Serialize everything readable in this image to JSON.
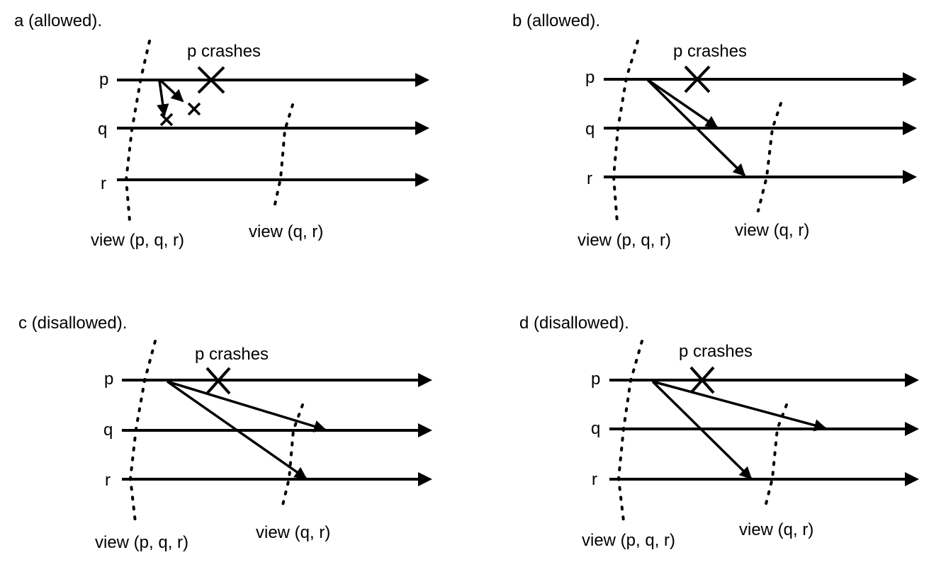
{
  "panels": {
    "a": {
      "title": "a (allowed).",
      "crash_label": "p crashes",
      "process_labels": {
        "p": "p",
        "q": "q",
        "r": "r"
      },
      "view_labels": {
        "first": "view (p, q, r)",
        "second": "view (q, r)"
      }
    },
    "b": {
      "title": "b (allowed).",
      "crash_label": "p crashes",
      "process_labels": {
        "p": "p",
        "q": "q",
        "r": "r"
      },
      "view_labels": {
        "first": "view (p, q, r)",
        "second": "view (q, r)"
      }
    },
    "c": {
      "title": "c (disallowed).",
      "crash_label": "p crashes",
      "process_labels": {
        "p": "p",
        "q": "q",
        "r": "r"
      },
      "view_labels": {
        "first": "view (p, q, r)",
        "second": "view (q, r)"
      }
    },
    "d": {
      "title": "d (disallowed).",
      "crash_label": "p crashes",
      "process_labels": {
        "p": "p",
        "q": "q",
        "r": "r"
      },
      "view_labels": {
        "first": "view (p, q, r)",
        "second": "view (q, r)"
      }
    }
  }
}
